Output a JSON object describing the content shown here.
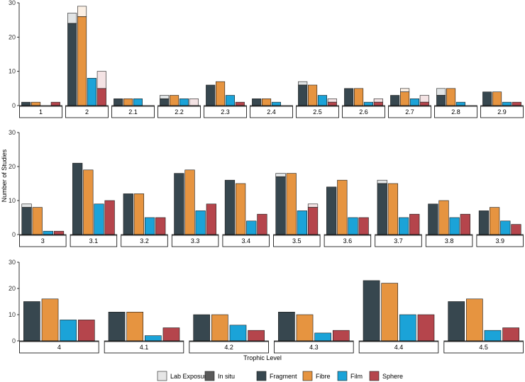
{
  "chart_data": {
    "type": "bar",
    "xlabel": "Trophic Level",
    "ylabel": "Number of Studies",
    "ylim": [
      0,
      30
    ],
    "yticks": [
      0,
      10,
      20,
      30
    ],
    "grid": false,
    "legend_position": "bottom",
    "legend": [
      {
        "name": "Lab Exposure",
        "color": "#e6e6e6"
      },
      {
        "name": "In situ",
        "color": "#595959"
      },
      {
        "name": "Fragment",
        "color": "#37474f"
      },
      {
        "name": "Fibre",
        "color": "#e69440"
      },
      {
        "name": "Film",
        "color": "#1ba3d8"
      },
      {
        "name": "Sphere",
        "color": "#b5454c"
      }
    ],
    "rows": [
      {
        "panels": [
          {
            "label": "1",
            "bars": [
              {
                "in_situ": 1,
                "lab": 0
              },
              {
                "in_situ": 1,
                "lab": 0
              },
              {
                "in_situ": 0,
                "lab": 0
              },
              {
                "in_situ": 1,
                "lab": 0
              }
            ]
          },
          {
            "label": "2",
            "bars": [
              {
                "in_situ": 24,
                "lab": 3
              },
              {
                "in_situ": 26,
                "lab": 3
              },
              {
                "in_situ": 8,
                "lab": 0
              },
              {
                "in_situ": 5,
                "lab": 5
              }
            ]
          },
          {
            "label": "2.1",
            "bars": [
              {
                "in_situ": 2,
                "lab": 0
              },
              {
                "in_situ": 2,
                "lab": 0
              },
              {
                "in_situ": 2,
                "lab": 0
              },
              {
                "in_situ": 0,
                "lab": 0
              }
            ]
          },
          {
            "label": "2.2",
            "bars": [
              {
                "in_situ": 2,
                "lab": 1
              },
              {
                "in_situ": 3,
                "lab": 0
              },
              {
                "in_situ": 2,
                "lab": 0
              },
              {
                "in_situ": 0,
                "lab": 2
              }
            ]
          },
          {
            "label": "2.3",
            "bars": [
              {
                "in_situ": 6,
                "lab": 0
              },
              {
                "in_situ": 7,
                "lab": 0
              },
              {
                "in_situ": 3,
                "lab": 0
              },
              {
                "in_situ": 1,
                "lab": 0
              }
            ]
          },
          {
            "label": "2.4",
            "bars": [
              {
                "in_situ": 2,
                "lab": 0
              },
              {
                "in_situ": 2,
                "lab": 0
              },
              {
                "in_situ": 1,
                "lab": 0
              },
              {
                "in_situ": 0,
                "lab": 0
              }
            ]
          },
          {
            "label": "2.5",
            "bars": [
              {
                "in_situ": 6,
                "lab": 1
              },
              {
                "in_situ": 6,
                "lab": 0
              },
              {
                "in_situ": 3,
                "lab": 0
              },
              {
                "in_situ": 1,
                "lab": 1
              }
            ]
          },
          {
            "label": "2.6",
            "bars": [
              {
                "in_situ": 5,
                "lab": 0
              },
              {
                "in_situ": 5,
                "lab": 0
              },
              {
                "in_situ": 1,
                "lab": 0
              },
              {
                "in_situ": 1,
                "lab": 1
              }
            ]
          },
          {
            "label": "2.7",
            "bars": [
              {
                "in_situ": 3,
                "lab": 0
              },
              {
                "in_situ": 4,
                "lab": 1
              },
              {
                "in_situ": 2,
                "lab": 0
              },
              {
                "in_situ": 1,
                "lab": 2
              }
            ]
          },
          {
            "label": "2.8",
            "bars": [
              {
                "in_situ": 3,
                "lab": 2
              },
              {
                "in_situ": 5,
                "lab": 0
              },
              {
                "in_situ": 1,
                "lab": 0
              },
              {
                "in_situ": 0,
                "lab": 0
              }
            ]
          },
          {
            "label": "2.9",
            "bars": [
              {
                "in_situ": 4,
                "lab": 0
              },
              {
                "in_situ": 4,
                "lab": 0
              },
              {
                "in_situ": 1,
                "lab": 0
              },
              {
                "in_situ": 1,
                "lab": 0
              }
            ]
          }
        ]
      },
      {
        "panels": [
          {
            "label": "3",
            "bars": [
              {
                "in_situ": 8,
                "lab": 1
              },
              {
                "in_situ": 8,
                "lab": 0
              },
              {
                "in_situ": 1,
                "lab": 0
              },
              {
                "in_situ": 1,
                "lab": 0
              }
            ]
          },
          {
            "label": "3.1",
            "bars": [
              {
                "in_situ": 21,
                "lab": 0
              },
              {
                "in_situ": 19,
                "lab": 0
              },
              {
                "in_situ": 9,
                "lab": 0
              },
              {
                "in_situ": 10,
                "lab": 0
              }
            ]
          },
          {
            "label": "3.2",
            "bars": [
              {
                "in_situ": 12,
                "lab": 0
              },
              {
                "in_situ": 12,
                "lab": 0
              },
              {
                "in_situ": 5,
                "lab": 0
              },
              {
                "in_situ": 5,
                "lab": 0
              }
            ]
          },
          {
            "label": "3.3",
            "bars": [
              {
                "in_situ": 18,
                "lab": 0
              },
              {
                "in_situ": 19,
                "lab": 0
              },
              {
                "in_situ": 7,
                "lab": 0
              },
              {
                "in_situ": 9,
                "lab": 0
              }
            ]
          },
          {
            "label": "3.4",
            "bars": [
              {
                "in_situ": 16,
                "lab": 0
              },
              {
                "in_situ": 15,
                "lab": 0
              },
              {
                "in_situ": 4,
                "lab": 0
              },
              {
                "in_situ": 6,
                "lab": 0
              }
            ]
          },
          {
            "label": "3.5",
            "bars": [
              {
                "in_situ": 17,
                "lab": 1
              },
              {
                "in_situ": 18,
                "lab": 0
              },
              {
                "in_situ": 7,
                "lab": 0
              },
              {
                "in_situ": 8,
                "lab": 1
              }
            ]
          },
          {
            "label": "3.6",
            "bars": [
              {
                "in_situ": 14,
                "lab": 0
              },
              {
                "in_situ": 16,
                "lab": 0
              },
              {
                "in_situ": 5,
                "lab": 0
              },
              {
                "in_situ": 5,
                "lab": 0
              }
            ]
          },
          {
            "label": "3.7",
            "bars": [
              {
                "in_situ": 15,
                "lab": 1
              },
              {
                "in_situ": 15,
                "lab": 0
              },
              {
                "in_situ": 5,
                "lab": 0
              },
              {
                "in_situ": 6,
                "lab": 0
              }
            ]
          },
          {
            "label": "3.8",
            "bars": [
              {
                "in_situ": 9,
                "lab": 0
              },
              {
                "in_situ": 10,
                "lab": 0
              },
              {
                "in_situ": 5,
                "lab": 0
              },
              {
                "in_situ": 6,
                "lab": 0
              }
            ]
          },
          {
            "label": "3.9",
            "bars": [
              {
                "in_situ": 7,
                "lab": 0
              },
              {
                "in_situ": 8,
                "lab": 0
              },
              {
                "in_situ": 4,
                "lab": 0
              },
              {
                "in_situ": 3,
                "lab": 0
              }
            ]
          }
        ]
      },
      {
        "panels": [
          {
            "label": "4",
            "bars": [
              {
                "in_situ": 15,
                "lab": 0
              },
              {
                "in_situ": 16,
                "lab": 0
              },
              {
                "in_situ": 8,
                "lab": 0
              },
              {
                "in_situ": 8,
                "lab": 0
              }
            ]
          },
          {
            "label": "4.1",
            "bars": [
              {
                "in_situ": 11,
                "lab": 0
              },
              {
                "in_situ": 11,
                "lab": 0
              },
              {
                "in_situ": 2,
                "lab": 0
              },
              {
                "in_situ": 5,
                "lab": 0
              }
            ]
          },
          {
            "label": "4.2",
            "bars": [
              {
                "in_situ": 10,
                "lab": 0
              },
              {
                "in_situ": 10,
                "lab": 0
              },
              {
                "in_situ": 6,
                "lab": 0
              },
              {
                "in_situ": 4,
                "lab": 0
              }
            ]
          },
          {
            "label": "4.3",
            "bars": [
              {
                "in_situ": 11,
                "lab": 0
              },
              {
                "in_situ": 10,
                "lab": 0
              },
              {
                "in_situ": 3,
                "lab": 0
              },
              {
                "in_situ": 4,
                "lab": 0
              }
            ]
          },
          {
            "label": "4.4",
            "bars": [
              {
                "in_situ": 23,
                "lab": 0
              },
              {
                "in_situ": 22,
                "lab": 0
              },
              {
                "in_situ": 10,
                "lab": 0
              },
              {
                "in_situ": 10,
                "lab": 0
              }
            ]
          },
          {
            "label": "4.5",
            "bars": [
              {
                "in_situ": 15,
                "lab": 0
              },
              {
                "in_situ": 16,
                "lab": 0
              },
              {
                "in_situ": 4,
                "lab": 0
              },
              {
                "in_situ": 5,
                "lab": 0
              }
            ]
          }
        ]
      }
    ]
  }
}
